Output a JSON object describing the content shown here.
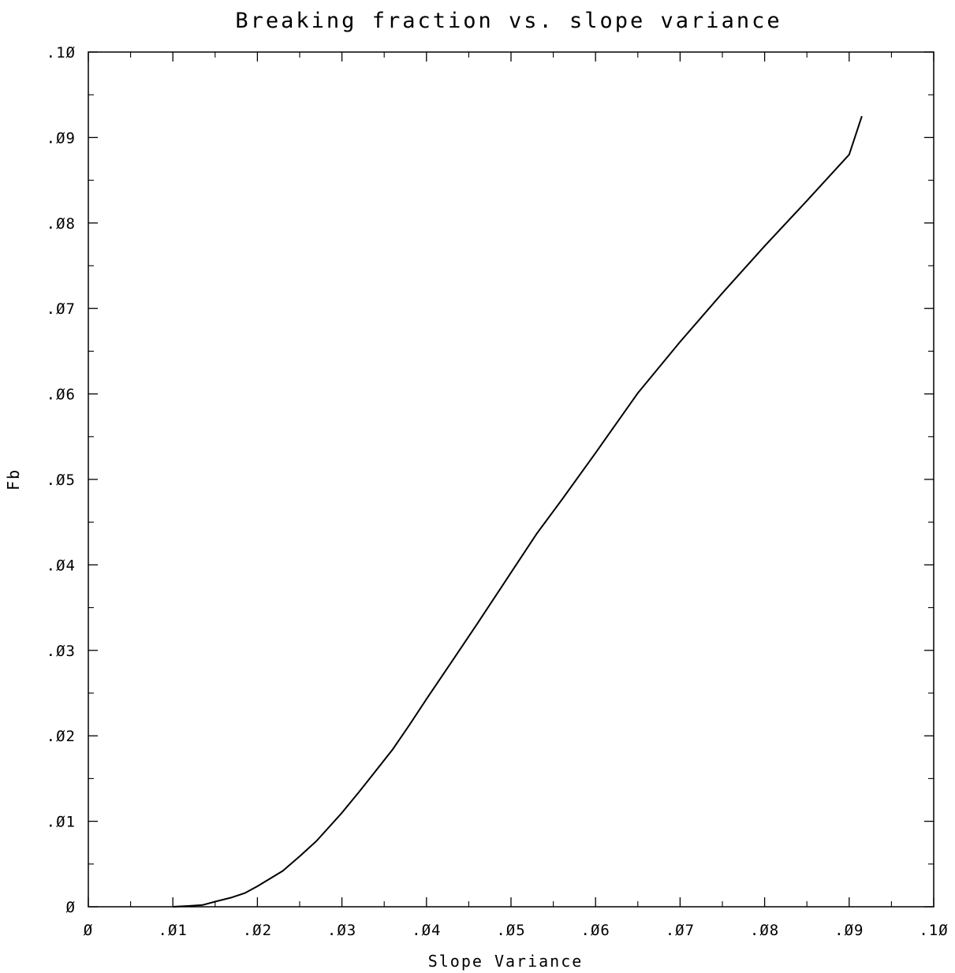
{
  "chart_data": {
    "type": "line",
    "title": "Breaking fraction vs. slope variance",
    "xlabel": "Slope Variance",
    "ylabel": "Fb",
    "xlim": [
      0,
      0.1
    ],
    "ylim": [
      0,
      0.1
    ],
    "grid": false,
    "x_ticks": [
      0,
      0.01,
      0.02,
      0.03,
      0.04,
      0.05,
      0.06,
      0.07,
      0.08,
      0.09,
      0.1
    ],
    "x_tick_labels": [
      "Ø",
      ".Ø1",
      ".Ø2",
      ".Ø3",
      ".Ø4",
      ".Ø5",
      ".Ø6",
      ".Ø7",
      ".Ø8",
      ".Ø9",
      ".1Ø"
    ],
    "y_ticks": [
      0,
      0.01,
      0.02,
      0.03,
      0.04,
      0.05,
      0.06,
      0.07,
      0.08,
      0.09,
      0.1
    ],
    "y_tick_labels": [
      "Ø",
      ".Ø1",
      ".Ø2",
      ".Ø3",
      ".Ø4",
      ".Ø5",
      ".Ø6",
      ".Ø7",
      ".Ø8",
      ".Ø9",
      ".1Ø"
    ],
    "series": [
      {
        "x": [
          0.01,
          0.012,
          0.0135,
          0.015,
          0.017,
          0.0185,
          0.02,
          0.023,
          0.025,
          0.027,
          0.03,
          0.032,
          0.034,
          0.036,
          0.038,
          0.04,
          0.043,
          0.046,
          0.05,
          0.053,
          0.056,
          0.06,
          0.065,
          0.07,
          0.075,
          0.08,
          0.085,
          0.09,
          0.0915
        ],
        "y": [
          0.0,
          0.0001,
          0.0002,
          0.0006,
          0.0011,
          0.0016,
          0.0024,
          0.0042,
          0.0059,
          0.0077,
          0.011,
          0.0134,
          0.0159,
          0.0184,
          0.0213,
          0.0243,
          0.0287,
          0.0331,
          0.0391,
          0.0436,
          0.0476,
          0.0531,
          0.0601,
          0.0661,
          0.0718,
          0.0773,
          0.0826,
          0.088,
          0.0925
        ]
      }
    ]
  }
}
